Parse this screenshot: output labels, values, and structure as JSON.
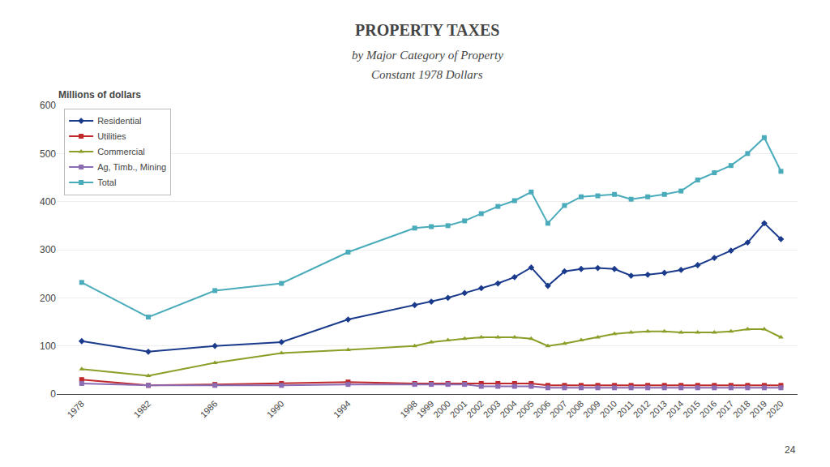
{
  "chart_data": {
    "type": "line",
    "title": "PROPERTY TAXES",
    "subtitle": [
      "by Major Category of Property",
      "Constant 1978 Dollars"
    ],
    "ylabel": "Millions of dollars",
    "annotations": [
      "24"
    ],
    "x": [
      1978,
      1982,
      1986,
      1990,
      1994,
      1998,
      1999,
      2000,
      2001,
      2002,
      2003,
      2004,
      2005,
      2006,
      2007,
      2008,
      2009,
      2010,
      2011,
      2012,
      2013,
      2014,
      2015,
      2016,
      2017,
      2018,
      2019,
      2020
    ],
    "series": [
      {
        "name": "Residential",
        "color": "#1A3A8C",
        "marker": "diamond",
        "values": [
          110,
          88,
          100,
          108,
          155,
          185,
          192,
          200,
          210,
          220,
          230,
          243,
          263,
          225,
          255,
          260,
          262,
          260,
          246,
          248,
          252,
          258,
          268,
          283,
          298,
          315,
          355,
          322
        ]
      },
      {
        "name": "Utilities",
        "color": "#C0292B",
        "marker": "square",
        "values": [
          30,
          18,
          20,
          22,
          25,
          22,
          22,
          22,
          22,
          22,
          22,
          22,
          22,
          18,
          18,
          18,
          18,
          18,
          18,
          18,
          18,
          18,
          18,
          18,
          18,
          18,
          18,
          18
        ]
      },
      {
        "name": "Commercial",
        "color": "#8B9E28",
        "marker": "triangle-up",
        "values": [
          52,
          38,
          65,
          85,
          92,
          100,
          108,
          112,
          115,
          118,
          118,
          118,
          115,
          100,
          105,
          112,
          118,
          125,
          128,
          130,
          130,
          128,
          128,
          128,
          130,
          135,
          135,
          118
        ]
      },
      {
        "name": "Ag, Timb., Mining",
        "color": "#8B6BB1",
        "marker": "square",
        "values": [
          22,
          18,
          18,
          18,
          20,
          20,
          20,
          20,
          20,
          16,
          16,
          16,
          16,
          13,
          13,
          13,
          13,
          13,
          13,
          13,
          13,
          13,
          13,
          13,
          13,
          13,
          13,
          13
        ]
      },
      {
        "name": "Total",
        "color": "#4AACBB",
        "marker": "square",
        "values": [
          232,
          160,
          215,
          230,
          295,
          345,
          348,
          350,
          360,
          375,
          390,
          402,
          420,
          355,
          392,
          410,
          412,
          415,
          405,
          410,
          415,
          422,
          445,
          460,
          475,
          500,
          533,
          463
        ]
      }
    ],
    "xlim": [
      1976.5,
      2021
    ],
    "xticks": [
      1978,
      1982,
      1986,
      1990,
      1994,
      1998,
      1999,
      2000,
      2001,
      2002,
      2003,
      2004,
      2005,
      2006,
      2007,
      2008,
      2009,
      2010,
      2011,
      2012,
      2013,
      2014,
      2015,
      2016,
      2017,
      2018,
      2019,
      2020
    ],
    "ylim": [
      0,
      600
    ],
    "yticks": [
      0,
      100,
      200,
      300,
      400,
      500,
      600
    ],
    "grid": true,
    "legend": "upper left"
  }
}
